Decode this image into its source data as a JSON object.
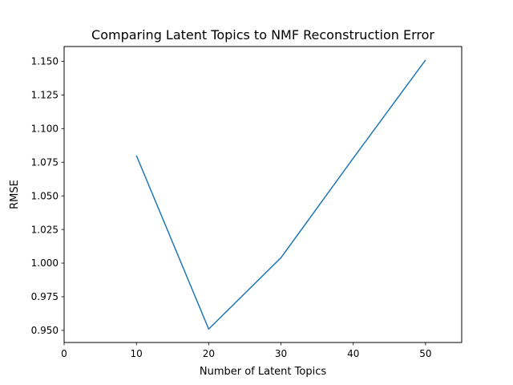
{
  "chart_data": {
    "type": "line",
    "title": "Comparing Latent Topics to NMF Reconstruction Error",
    "xlabel": "Number of Latent Topics",
    "ylabel": "RMSE",
    "x": [
      10,
      20,
      30,
      40,
      50
    ],
    "series": [
      {
        "values": [
          1.08,
          0.951,
          1.004,
          1.078,
          1.151
        ],
        "color": "#1f77b4"
      }
    ],
    "xlim": [
      0,
      55
    ],
    "ylim": [
      0.941,
      1.161
    ],
    "xticks": [
      0,
      10,
      20,
      30,
      40,
      50
    ],
    "xtick_labels": [
      "0",
      "10",
      "20",
      "30",
      "40",
      "50"
    ],
    "yticks": [
      0.95,
      0.975,
      1.0,
      1.025,
      1.05,
      1.075,
      1.1,
      1.125,
      1.15
    ],
    "ytick_labels": [
      "0.950",
      "0.975",
      "1.000",
      "1.025",
      "1.050",
      "1.075",
      "1.100",
      "1.125",
      "1.150"
    ],
    "grid": false,
    "legend": false
  }
}
